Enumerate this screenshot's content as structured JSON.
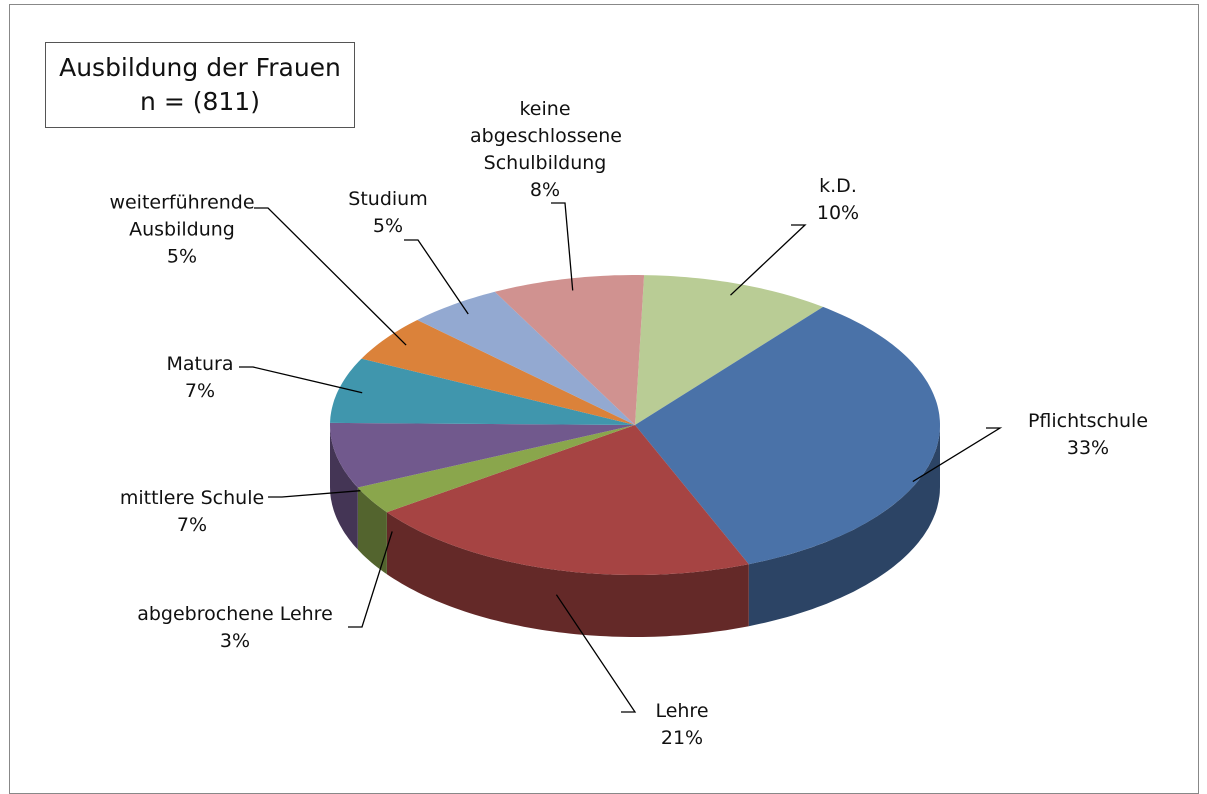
{
  "chart_data": {
    "type": "pie",
    "title": "Ausbildung der Frauen",
    "subtitle": "n = (811)",
    "categories": [
      "k.D.",
      "Pflichtschule",
      "Lehre",
      "abgebrochene Lehre",
      "mittlere Schule",
      "Matura",
      "weiterführende Ausbildung",
      "Studium",
      "keine abgeschlossene Schulbildung"
    ],
    "values": [
      10,
      33,
      21,
      3,
      7,
      7,
      5,
      5,
      8
    ],
    "value_labels": [
      "10%",
      "33%",
      "21%",
      "3%",
      "7%",
      "7%",
      "5%",
      "5%",
      "8%"
    ],
    "colors": [
      "#b9cc95",
      "#4a72a8",
      "#a64443",
      "#8aa64c",
      "#71598d",
      "#4096ad",
      "#db823a",
      "#93a9d1",
      "#d09290"
    ]
  }
}
